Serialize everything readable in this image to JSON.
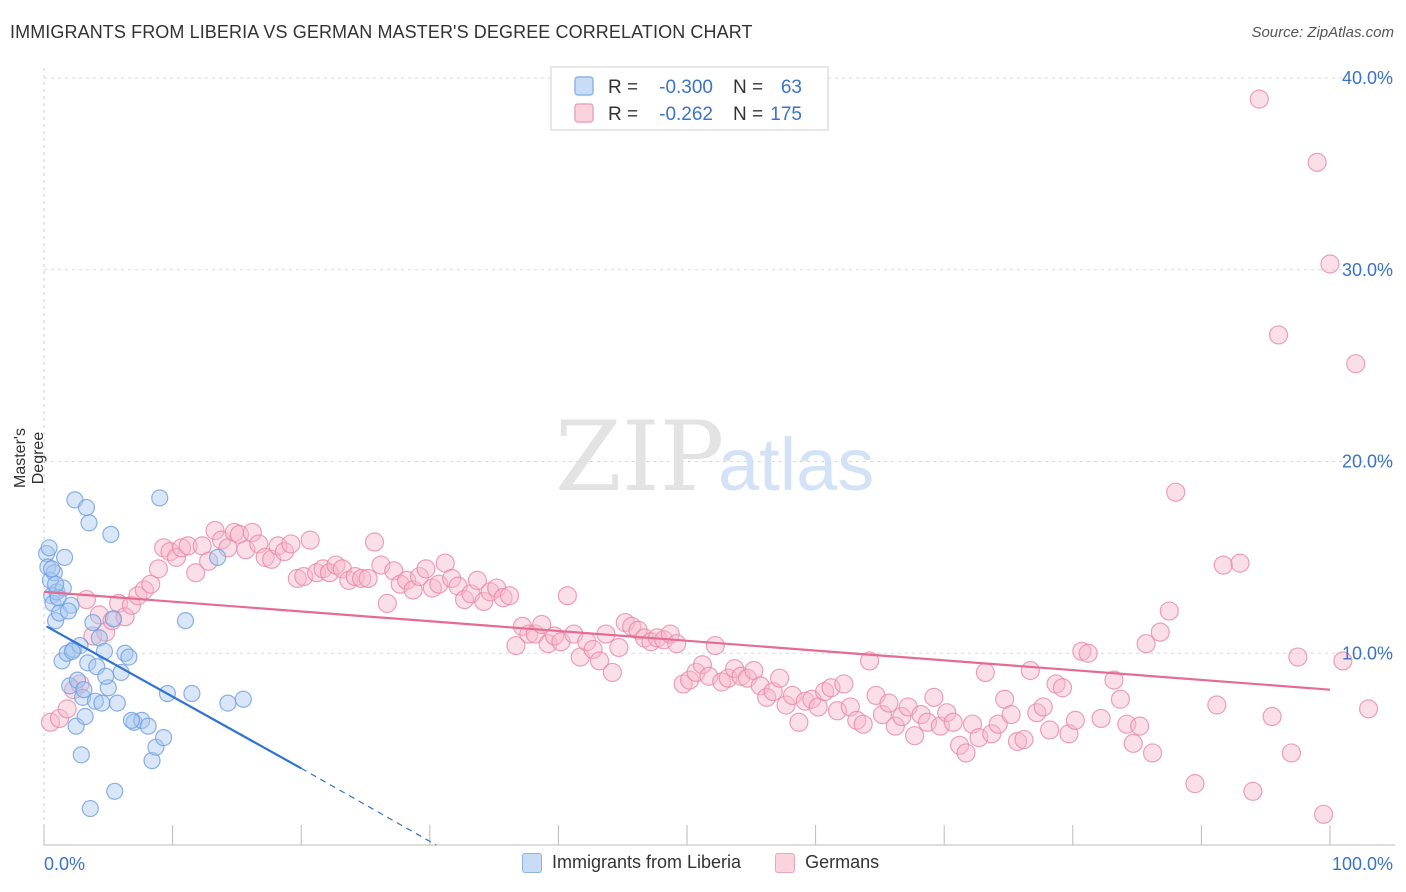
{
  "title": "IMMIGRANTS FROM LIBERIA VS GERMAN MASTER'S DEGREE CORRELATION CHART",
  "source": "Source: ZipAtlas.com",
  "watermark": {
    "zip": "ZIP",
    "atlas": "atlas"
  },
  "colors": {
    "blue_fill": "#a9c8f0",
    "blue_stroke": "#6f9fe0",
    "blue_line": "#2f74d0",
    "pink_fill": "#f7b8cb",
    "pink_stroke": "#e98aa8",
    "pink_line": "#e56b93",
    "axis_text": "#3a73c8",
    "grid": "#d8d8d8"
  },
  "legend_top": [
    {
      "r_label": "R =",
      "r_value": "-0.300",
      "n_label": "N =",
      "n_value": "63"
    },
    {
      "r_label": "R =",
      "r_value": "-0.262",
      "n_label": "N =",
      "n_value": "175"
    }
  ],
  "legend_bottom": [
    "Immigrants from Liberia",
    "Germans"
  ],
  "chart_data": {
    "type": "scatter",
    "xlabel": "",
    "ylabel": "Master's Degree",
    "xlim": [
      0,
      100
    ],
    "ylim": [
      0,
      40
    ],
    "x_tick_labels": [
      "0.0%",
      "100.0%"
    ],
    "y_tick_labels": [
      "10.0%",
      "20.0%",
      "30.0%",
      "40.0%"
    ],
    "y_ticks": [
      10,
      20,
      30,
      40
    ],
    "grid": true,
    "series": [
      {
        "name": "Immigrants from Liberia",
        "color": "blue",
        "trend": {
          "x0": 0.2,
          "y0": 11.4,
          "x1": 20,
          "y1": 4.0,
          "dash_to_x": 30.5,
          "dash_to_y": 0.0
        },
        "points": [
          [
            0.2,
            15.2
          ],
          [
            0.3,
            14.5
          ],
          [
            0.5,
            13.8
          ],
          [
            0.6,
            13.0
          ],
          [
            0.7,
            12.6
          ],
          [
            0.8,
            14.2
          ],
          [
            0.9,
            11.7
          ],
          [
            1.0,
            13.2
          ],
          [
            1.2,
            12.1
          ],
          [
            1.4,
            9.6
          ],
          [
            1.5,
            13.4
          ],
          [
            1.6,
            15.0
          ],
          [
            1.8,
            10.0
          ],
          [
            2.0,
            8.3
          ],
          [
            2.1,
            12.5
          ],
          [
            2.3,
            10.2
          ],
          [
            2.4,
            18.0
          ],
          [
            2.5,
            6.2
          ],
          [
            2.6,
            8.6
          ],
          [
            2.8,
            10.4
          ],
          [
            2.9,
            4.7
          ],
          [
            3.0,
            7.7
          ],
          [
            3.2,
            6.7
          ],
          [
            3.3,
            17.6
          ],
          [
            3.4,
            9.5
          ],
          [
            3.5,
            16.8
          ],
          [
            3.6,
            1.9
          ],
          [
            3.8,
            11.6
          ],
          [
            4.0,
            7.5
          ],
          [
            4.1,
            9.3
          ],
          [
            4.3,
            10.8
          ],
          [
            4.5,
            7.4
          ],
          [
            4.7,
            10.1
          ],
          [
            5.0,
            8.2
          ],
          [
            5.2,
            16.2
          ],
          [
            5.4,
            11.8
          ],
          [
            5.5,
            2.8
          ],
          [
            5.7,
            7.4
          ],
          [
            6.0,
            9.0
          ],
          [
            6.3,
            10.0
          ],
          [
            6.6,
            9.8
          ],
          [
            7.0,
            6.4
          ],
          [
            7.6,
            6.5
          ],
          [
            8.1,
            6.2
          ],
          [
            8.4,
            4.4
          ],
          [
            8.7,
            5.1
          ],
          [
            9.0,
            18.1
          ],
          [
            9.3,
            5.6
          ],
          [
            9.6,
            7.9
          ],
          [
            11.0,
            11.7
          ],
          [
            11.5,
            7.9
          ],
          [
            13.5,
            15.0
          ],
          [
            14.3,
            7.4
          ],
          [
            15.5,
            7.6
          ],
          [
            0.4,
            15.5
          ],
          [
            1.1,
            12.9
          ],
          [
            0.6,
            14.4
          ],
          [
            2.2,
            10.1
          ],
          [
            3.1,
            8.1
          ],
          [
            1.9,
            12.2
          ],
          [
            4.8,
            8.8
          ],
          [
            6.8,
            6.5
          ],
          [
            0.9,
            13.6
          ]
        ]
      },
      {
        "name": "Germans",
        "color": "pink",
        "trend": {
          "x0": 0,
          "y0": 13.2,
          "x1": 100,
          "y1": 8.1
        },
        "points": [
          [
            0.5,
            6.4
          ],
          [
            1.2,
            6.6
          ],
          [
            1.8,
            7.1
          ],
          [
            2.3,
            8.1
          ],
          [
            2.8,
            8.4
          ],
          [
            3.3,
            12.8
          ],
          [
            3.8,
            10.9
          ],
          [
            4.3,
            12.0
          ],
          [
            4.8,
            11.1
          ],
          [
            5.3,
            11.7
          ],
          [
            5.8,
            12.6
          ],
          [
            6.3,
            11.9
          ],
          [
            6.8,
            12.5
          ],
          [
            7.3,
            13.0
          ],
          [
            7.8,
            13.3
          ],
          [
            8.3,
            13.6
          ],
          [
            8.9,
            14.4
          ],
          [
            9.3,
            15.5
          ],
          [
            9.8,
            15.3
          ],
          [
            10.3,
            15.0
          ],
          [
            10.7,
            15.5
          ],
          [
            11.2,
            15.6
          ],
          [
            11.8,
            14.2
          ],
          [
            12.3,
            15.6
          ],
          [
            12.8,
            14.8
          ],
          [
            13.3,
            16.4
          ],
          [
            13.8,
            15.9
          ],
          [
            14.3,
            15.5
          ],
          [
            14.8,
            16.3
          ],
          [
            15.2,
            16.2
          ],
          [
            15.7,
            15.4
          ],
          [
            16.2,
            16.3
          ],
          [
            16.7,
            15.7
          ],
          [
            17.2,
            15.0
          ],
          [
            17.7,
            14.9
          ],
          [
            18.2,
            15.6
          ],
          [
            18.7,
            15.3
          ],
          [
            19.2,
            15.7
          ],
          [
            19.7,
            13.9
          ],
          [
            20.2,
            14.0
          ],
          [
            20.7,
            15.9
          ],
          [
            21.2,
            14.2
          ],
          [
            21.7,
            14.4
          ],
          [
            22.2,
            14.2
          ],
          [
            22.7,
            14.6
          ],
          [
            23.2,
            14.4
          ],
          [
            23.7,
            13.8
          ],
          [
            24.2,
            14.0
          ],
          [
            24.7,
            13.9
          ],
          [
            25.2,
            13.9
          ],
          [
            25.7,
            15.8
          ],
          [
            26.2,
            14.6
          ],
          [
            26.7,
            12.6
          ],
          [
            27.2,
            14.3
          ],
          [
            27.7,
            13.6
          ],
          [
            28.2,
            13.8
          ],
          [
            28.7,
            13.3
          ],
          [
            29.2,
            14.0
          ],
          [
            29.7,
            14.4
          ],
          [
            30.2,
            13.4
          ],
          [
            30.7,
            13.6
          ],
          [
            31.2,
            14.7
          ],
          [
            31.7,
            13.9
          ],
          [
            32.2,
            13.5
          ],
          [
            32.7,
            12.8
          ],
          [
            33.2,
            13.1
          ],
          [
            33.7,
            13.8
          ],
          [
            34.2,
            12.7
          ],
          [
            34.7,
            13.2
          ],
          [
            35.2,
            13.4
          ],
          [
            35.7,
            12.9
          ],
          [
            36.2,
            13.0
          ],
          [
            36.7,
            10.4
          ],
          [
            37.2,
            11.4
          ],
          [
            37.7,
            11.0
          ],
          [
            38.2,
            11.0
          ],
          [
            38.7,
            11.5
          ],
          [
            39.2,
            10.5
          ],
          [
            39.7,
            10.9
          ],
          [
            40.2,
            10.6
          ],
          [
            40.7,
            13.0
          ],
          [
            41.2,
            11.0
          ],
          [
            41.7,
            9.8
          ],
          [
            42.2,
            10.6
          ],
          [
            42.7,
            10.2
          ],
          [
            43.2,
            9.6
          ],
          [
            43.7,
            11.0
          ],
          [
            44.2,
            9.0
          ],
          [
            44.7,
            10.3
          ],
          [
            45.2,
            11.6
          ],
          [
            45.7,
            11.4
          ],
          [
            46.2,
            11.2
          ],
          [
            46.7,
            10.8
          ],
          [
            47.2,
            10.6
          ],
          [
            47.7,
            10.8
          ],
          [
            48.2,
            10.7
          ],
          [
            48.7,
            11.0
          ],
          [
            49.2,
            10.5
          ],
          [
            49.7,
            8.4
          ],
          [
            50.2,
            8.6
          ],
          [
            50.7,
            9.0
          ],
          [
            51.2,
            9.4
          ],
          [
            51.7,
            8.8
          ],
          [
            52.2,
            10.4
          ],
          [
            52.7,
            8.5
          ],
          [
            53.2,
            8.7
          ],
          [
            53.7,
            9.2
          ],
          [
            54.2,
            8.8
          ],
          [
            54.7,
            8.7
          ],
          [
            55.2,
            9.1
          ],
          [
            55.7,
            8.3
          ],
          [
            56.2,
            7.7
          ],
          [
            56.7,
            8.0
          ],
          [
            57.2,
            8.7
          ],
          [
            57.7,
            7.3
          ],
          [
            58.2,
            7.8
          ],
          [
            58.7,
            6.4
          ],
          [
            59.2,
            7.5
          ],
          [
            59.7,
            7.6
          ],
          [
            60.2,
            7.2
          ],
          [
            60.7,
            8.0
          ],
          [
            61.2,
            8.2
          ],
          [
            61.7,
            7.0
          ],
          [
            62.2,
            8.4
          ],
          [
            62.7,
            7.2
          ],
          [
            63.2,
            6.5
          ],
          [
            63.7,
            6.3
          ],
          [
            64.2,
            9.6
          ],
          [
            64.7,
            7.8
          ],
          [
            65.2,
            6.8
          ],
          [
            65.7,
            7.4
          ],
          [
            66.2,
            6.2
          ],
          [
            66.7,
            6.7
          ],
          [
            67.2,
            7.2
          ],
          [
            67.7,
            5.7
          ],
          [
            68.2,
            6.8
          ],
          [
            68.7,
            6.4
          ],
          [
            69.2,
            7.7
          ],
          [
            69.7,
            6.2
          ],
          [
            70.2,
            6.9
          ],
          [
            70.7,
            6.4
          ],
          [
            71.2,
            5.2
          ],
          [
            71.7,
            4.8
          ],
          [
            72.2,
            6.3
          ],
          [
            72.7,
            5.6
          ],
          [
            73.2,
            9.0
          ],
          [
            73.7,
            5.8
          ],
          [
            74.2,
            6.3
          ],
          [
            74.7,
            7.6
          ],
          [
            75.2,
            6.8
          ],
          [
            75.7,
            5.4
          ],
          [
            76.2,
            5.5
          ],
          [
            76.7,
            9.1
          ],
          [
            77.2,
            6.9
          ],
          [
            77.7,
            7.2
          ],
          [
            78.2,
            6.0
          ],
          [
            78.7,
            8.4
          ],
          [
            79.2,
            8.2
          ],
          [
            79.7,
            5.8
          ],
          [
            80.2,
            6.5
          ],
          [
            80.7,
            10.1
          ],
          [
            81.2,
            10.0
          ],
          [
            82.2,
            6.6
          ],
          [
            83.2,
            8.6
          ],
          [
            83.7,
            7.6
          ],
          [
            84.2,
            6.3
          ],
          [
            84.7,
            5.3
          ],
          [
            85.2,
            6.2
          ],
          [
            86.2,
            4.8
          ],
          [
            88.0,
            18.4
          ],
          [
            89.5,
            3.2
          ],
          [
            91.2,
            7.3
          ],
          [
            91.7,
            14.6
          ],
          [
            93.0,
            14.7
          ],
          [
            94.0,
            2.8
          ],
          [
            94.5,
            38.9
          ],
          [
            95.5,
            6.7
          ],
          [
            96.0,
            26.6
          ],
          [
            97.0,
            4.8
          ],
          [
            97.5,
            9.8
          ],
          [
            99.0,
            35.6
          ],
          [
            99.5,
            1.6
          ],
          [
            100,
            30.3
          ],
          [
            101,
            9.6
          ],
          [
            102,
            25.1
          ],
          [
            103,
            7.1
          ],
          [
            85.7,
            10.5
          ],
          [
            86.8,
            11.1
          ],
          [
            87.5,
            12.2
          ]
        ]
      }
    ]
  }
}
